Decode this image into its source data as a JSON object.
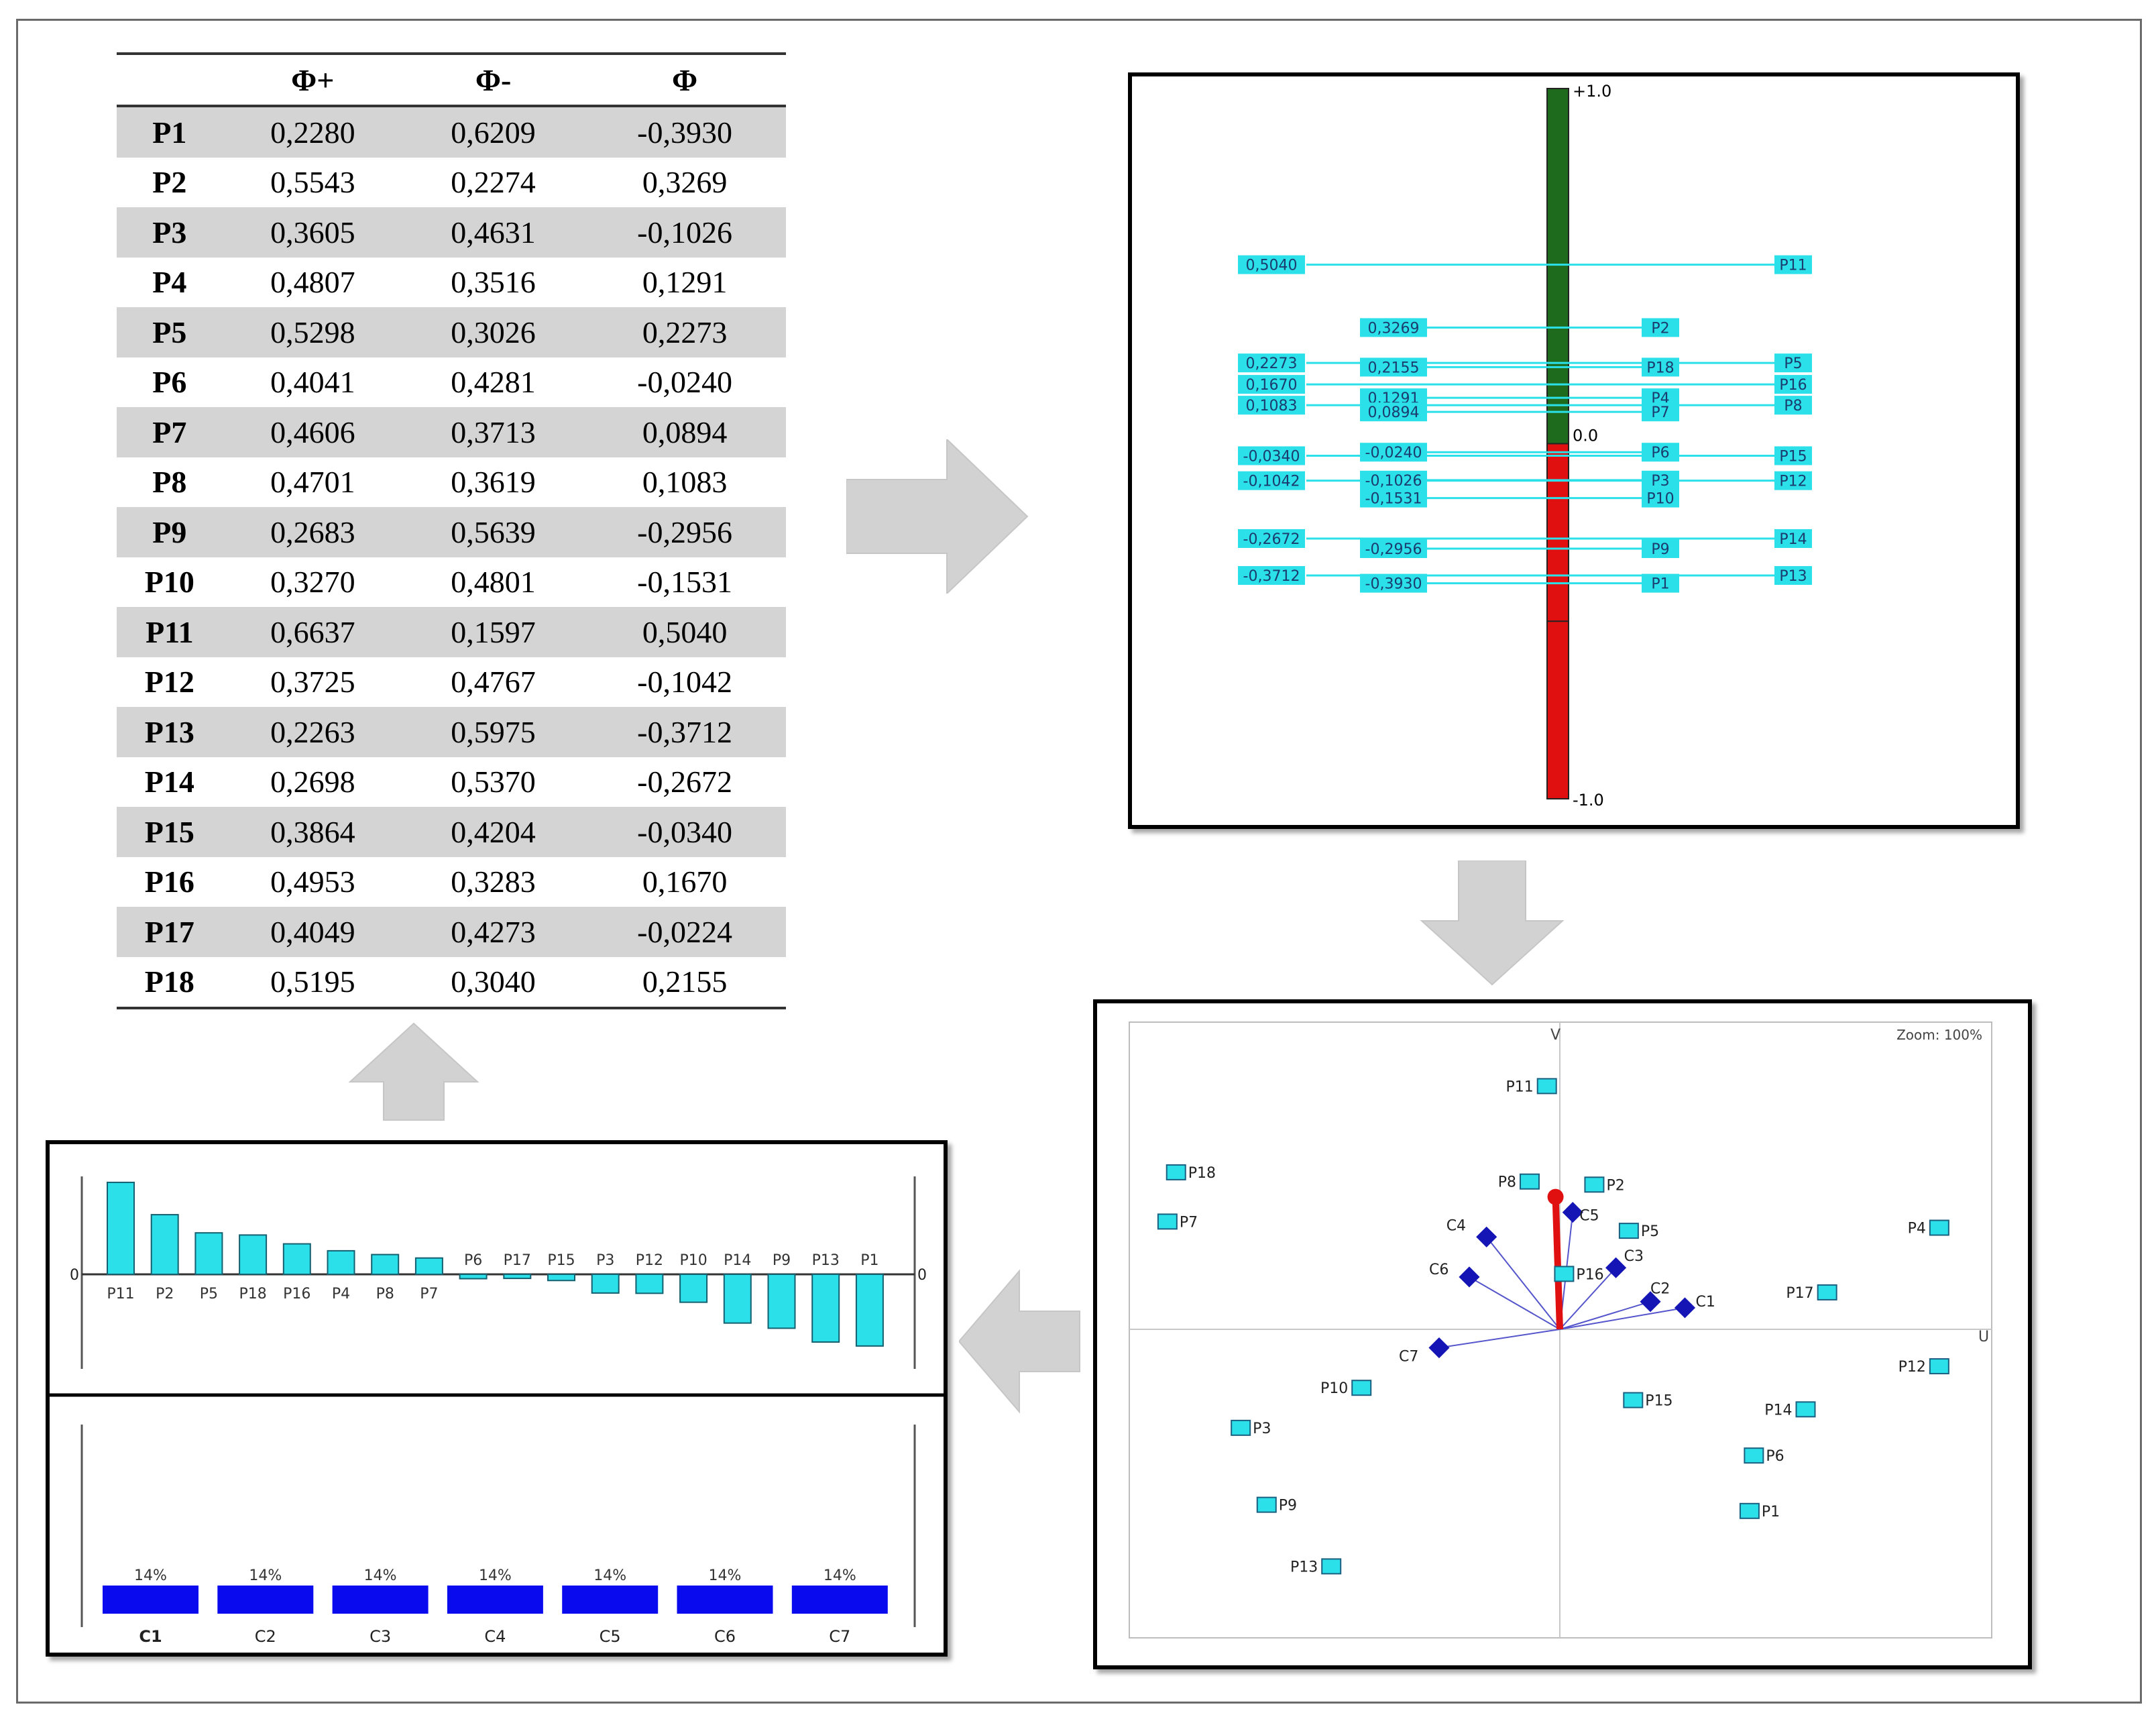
{
  "table": {
    "columns": [
      "",
      "Φ+",
      "Φ-",
      "Φ"
    ],
    "rows": [
      [
        "P1",
        "0,2280",
        "0,6209",
        "-0,3930"
      ],
      [
        "P2",
        "0,5543",
        "0,2274",
        "0,3269"
      ],
      [
        "P3",
        "0,3605",
        "0,4631",
        "-0,1026"
      ],
      [
        "P4",
        "0,4807",
        "0,3516",
        "0,1291"
      ],
      [
        "P5",
        "0,5298",
        "0,3026",
        "0,2273"
      ],
      [
        "P6",
        "0,4041",
        "0,4281",
        "-0,0240"
      ],
      [
        "P7",
        "0,4606",
        "0,3713",
        "0,0894"
      ],
      [
        "P8",
        "0,4701",
        "0,3619",
        "0,1083"
      ],
      [
        "P9",
        "0,2683",
        "0,5639",
        "-0,2956"
      ],
      [
        "P10",
        "0,3270",
        "0,4801",
        "-0,1531"
      ],
      [
        "P11",
        "0,6637",
        "0,1597",
        "0,5040"
      ],
      [
        "P12",
        "0,3725",
        "0,4767",
        "-0,1042"
      ],
      [
        "P13",
        "0,2263",
        "0,5975",
        "-0,3712"
      ],
      [
        "P14",
        "0,2698",
        "0,5370",
        "-0,2672"
      ],
      [
        "P15",
        "0,3864",
        "0,4204",
        "-0,0340"
      ],
      [
        "P16",
        "0,4953",
        "0,3283",
        "0,1670"
      ],
      [
        "P17",
        "0,4049",
        "0,4273",
        "-0,0224"
      ],
      [
        "P18",
        "0,5195",
        "0,3040",
        "0,2155"
      ]
    ]
  },
  "chart_data": [
    {
      "type": "bar",
      "name": "phi-scale",
      "ylim": [
        -1,
        1
      ],
      "top_label": "+1.0",
      "zero_label": "0.0",
      "bottom_label": "-1.0",
      "colors": {
        "positive": "#1e6b1e",
        "negative": "#e01010",
        "label_bg": "#2be0e8"
      },
      "left_items": [
        {
          "name": "P11",
          "value": 0.504,
          "label": "0,5040"
        },
        {
          "name": "P5",
          "value": 0.2273,
          "label": "0,2273"
        },
        {
          "name": "P16",
          "value": 0.167,
          "label": "0,1670"
        },
        {
          "name": "P8",
          "value": 0.1083,
          "label": "0,1083"
        },
        {
          "name": "P15",
          "value": -0.034,
          "label": "-0,0340"
        },
        {
          "name": "P12",
          "value": -0.1042,
          "label": "-0,1042"
        },
        {
          "name": "P14",
          "value": -0.2672,
          "label": "-0,2672"
        },
        {
          "name": "P13",
          "value": -0.3712,
          "label": "-0,3712"
        }
      ],
      "right_items": [
        {
          "name": "P2",
          "value": 0.3269,
          "label": "0,3269"
        },
        {
          "name": "P18",
          "value": 0.2155,
          "label": "0,2155"
        },
        {
          "name": "P4",
          "value": 0.1291,
          "label": "0,1291"
        },
        {
          "name": "P7",
          "value": 0.0894,
          "label": "0,0894"
        },
        {
          "name": "P6",
          "value": -0.024,
          "label": "-0,0240"
        },
        {
          "name": "P3",
          "value": -0.1026,
          "label": "-0,1026"
        },
        {
          "name": "P10",
          "value": -0.1531,
          "label": "-0,1531"
        },
        {
          "name": "P9",
          "value": -0.2956,
          "label": "-0,2956"
        },
        {
          "name": "P1",
          "value": -0.393,
          "label": "-0,3930"
        }
      ]
    },
    {
      "type": "scatter",
      "name": "gaia-plane",
      "xlabel": "U",
      "ylabel": "V",
      "zoom_label": "Zoom: 100%",
      "xlim": [
        -1,
        1
      ],
      "ylim": [
        -1,
        1
      ],
      "colors": {
        "point": "#2be0e8",
        "criterion": "#1515b5",
        "decision_axis": "#e01010"
      },
      "points": [
        {
          "name": "P11",
          "x": -0.03,
          "y": 0.79
        },
        {
          "name": "P18",
          "x": -0.89,
          "y": 0.51
        },
        {
          "name": "P7",
          "x": -0.91,
          "y": 0.35
        },
        {
          "name": "P8",
          "x": -0.07,
          "y": 0.48
        },
        {
          "name": "P2",
          "x": 0.08,
          "y": 0.47
        },
        {
          "name": "P5",
          "x": 0.16,
          "y": 0.32
        },
        {
          "name": "P4",
          "x": 0.88,
          "y": 0.33
        },
        {
          "name": "P16",
          "x": 0.01,
          "y": 0.18
        },
        {
          "name": "P17",
          "x": 0.62,
          "y": 0.12
        },
        {
          "name": "P12",
          "x": 0.88,
          "y": -0.12
        },
        {
          "name": "P10",
          "x": -0.46,
          "y": -0.19
        },
        {
          "name": "P15",
          "x": 0.17,
          "y": -0.23
        },
        {
          "name": "P14",
          "x": 0.57,
          "y": -0.26
        },
        {
          "name": "P3",
          "x": -0.74,
          "y": -0.32
        },
        {
          "name": "P6",
          "x": 0.45,
          "y": -0.41
        },
        {
          "name": "P9",
          "x": -0.68,
          "y": -0.57
        },
        {
          "name": "P1",
          "x": 0.44,
          "y": -0.59
        },
        {
          "name": "P13",
          "x": -0.53,
          "y": -0.77
        }
      ],
      "criteria": [
        {
          "name": "C1",
          "x": 0.29,
          "y": 0.07
        },
        {
          "name": "C2",
          "x": 0.21,
          "y": 0.09
        },
        {
          "name": "C3",
          "x": 0.13,
          "y": 0.2
        },
        {
          "name": "C4",
          "x": -0.17,
          "y": 0.3
        },
        {
          "name": "C5",
          "x": 0.03,
          "y": 0.38
        },
        {
          "name": "C6",
          "x": -0.21,
          "y": 0.17
        },
        {
          "name": "C7",
          "x": -0.28,
          "y": -0.06
        }
      ],
      "decision_axis": {
        "x": -0.01,
        "y": 0.43
      }
    },
    {
      "type": "bar",
      "name": "phi-ranking-bars",
      "categories": [
        "P11",
        "P2",
        "P5",
        "P18",
        "P16",
        "P4",
        "P8",
        "P7",
        "P6",
        "P17",
        "P15",
        "P3",
        "P12",
        "P10",
        "P14",
        "P9",
        "P13",
        "P1"
      ],
      "values": [
        0.504,
        0.3269,
        0.2273,
        0.2155,
        0.167,
        0.1291,
        0.1083,
        0.0894,
        -0.024,
        -0.0224,
        -0.034,
        -0.1026,
        -0.1042,
        -0.1531,
        -0.2672,
        -0.2956,
        -0.3712,
        -0.393
      ],
      "tick_labels": [
        "P11",
        "P2",
        "P5",
        "P18",
        "P16",
        "P4",
        "P8",
        "P7",
        "P6",
        "P17",
        "P15",
        "P3",
        "P12",
        "P10",
        "P14",
        "P9",
        "P13",
        "P1"
      ],
      "zero_label": "0",
      "ylim": [
        -0.55,
        0.55
      ],
      "color": "#2be0e8"
    },
    {
      "type": "bar",
      "name": "criteria-weights",
      "categories": [
        "C1",
        "C2",
        "C3",
        "C4",
        "C5",
        "C6",
        "C7"
      ],
      "values": [
        14,
        14,
        14,
        14,
        14,
        14,
        14
      ],
      "labels": [
        "14%",
        "14%",
        "14%",
        "14%",
        "14%",
        "14%",
        "14%"
      ],
      "color": "#0a0aef"
    }
  ]
}
